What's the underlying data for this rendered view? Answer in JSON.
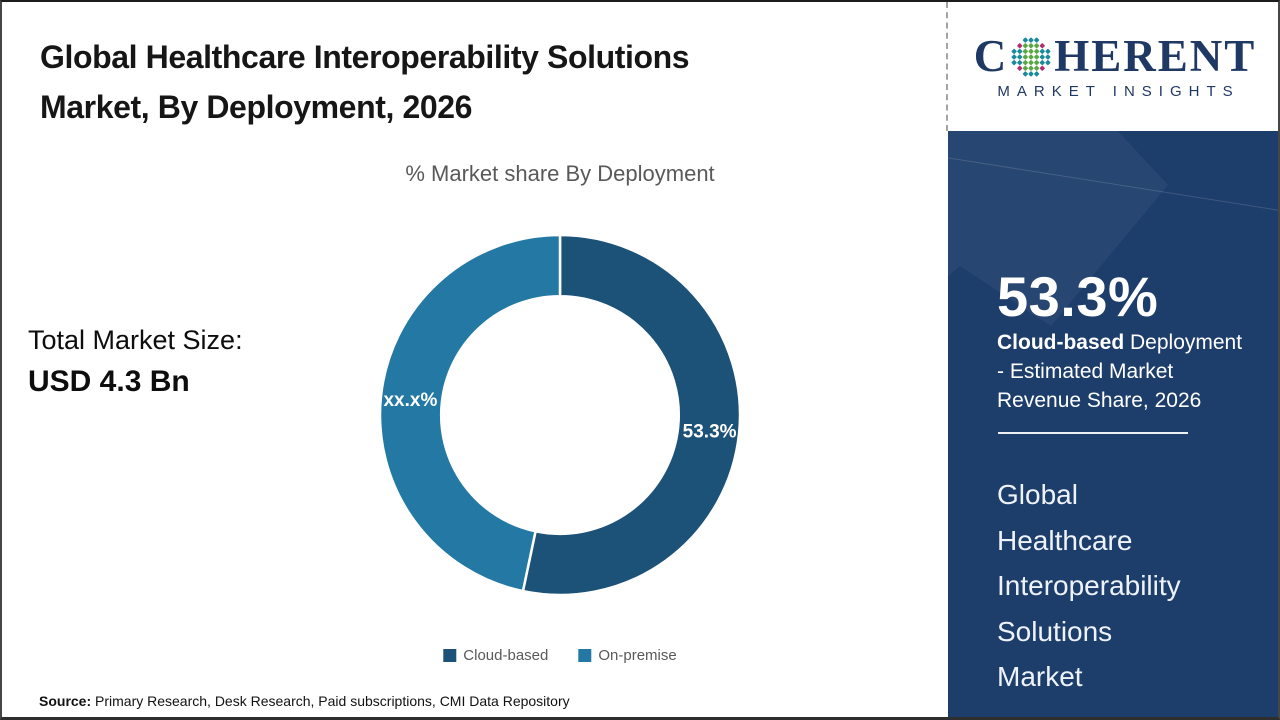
{
  "page": {
    "title_line1": "Global Healthcare Interoperability Solutions",
    "title_line2": "Market, By Deployment, 2026"
  },
  "logo": {
    "part1": "C",
    "part2": "HERENT",
    "tagline": "MARKET INSIGHTS",
    "text_color": "#1f3864",
    "globe_colors": {
      "teal": "#1a8a9d",
      "green": "#5aa844",
      "magenta": "#b22d72"
    }
  },
  "market_size": {
    "label": "Total Market Size:",
    "value": "USD 4.3 Bn"
  },
  "chart_data": {
    "type": "pie",
    "donut": true,
    "title": "% Market share By Deployment",
    "categories": [
      "Cloud-based",
      "On-premise"
    ],
    "values": [
      53.3,
      46.7
    ],
    "display_labels": [
      "53.3%",
      "xx.x%"
    ],
    "colors": [
      "#1d5278",
      "#2379a4"
    ],
    "start_angle_deg": 0,
    "direction": "clockwise",
    "inner_radius_ratio": 0.66,
    "legend_position": "bottom"
  },
  "sidebar": {
    "background": "#1d3d6b",
    "stat_value": "53.3%",
    "desc_bold": "Cloud-based",
    "desc_rest": " Deployment - Estimated Market Revenue Share, 2026",
    "market_name_lines": [
      "Global",
      "Healthcare",
      "Interoperability",
      "Solutions",
      "Market"
    ]
  },
  "footer": {
    "source_label": "Source:",
    "source_text": " Primary Research, Desk Research, Paid subscriptions, CMI Data Repository"
  }
}
